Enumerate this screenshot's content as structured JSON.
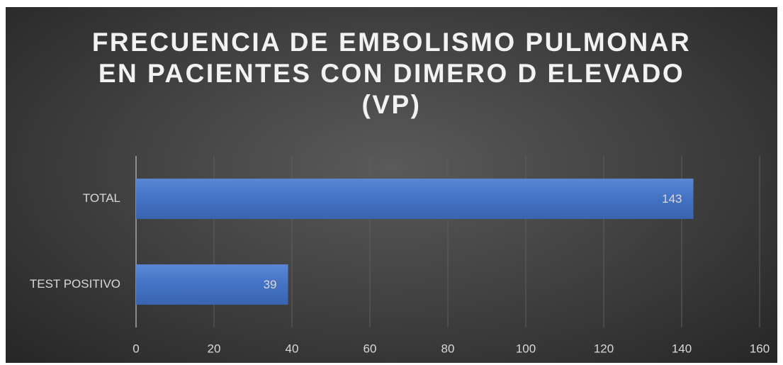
{
  "chart_data": {
    "type": "bar",
    "orientation": "horizontal",
    "title": "FRECUENCIA DE EMBOLISMO PULMONAR EN PACIENTES CON DIMERO D ELEVADO (VP)",
    "categories": [
      "TOTAL",
      "TEST POSITIVO"
    ],
    "values": [
      143,
      39
    ],
    "color": "#4472c4",
    "xlim": [
      0,
      160
    ],
    "xticks": [
      0,
      20,
      40,
      60,
      80,
      100,
      120,
      140,
      160
    ],
    "grid": true
  }
}
